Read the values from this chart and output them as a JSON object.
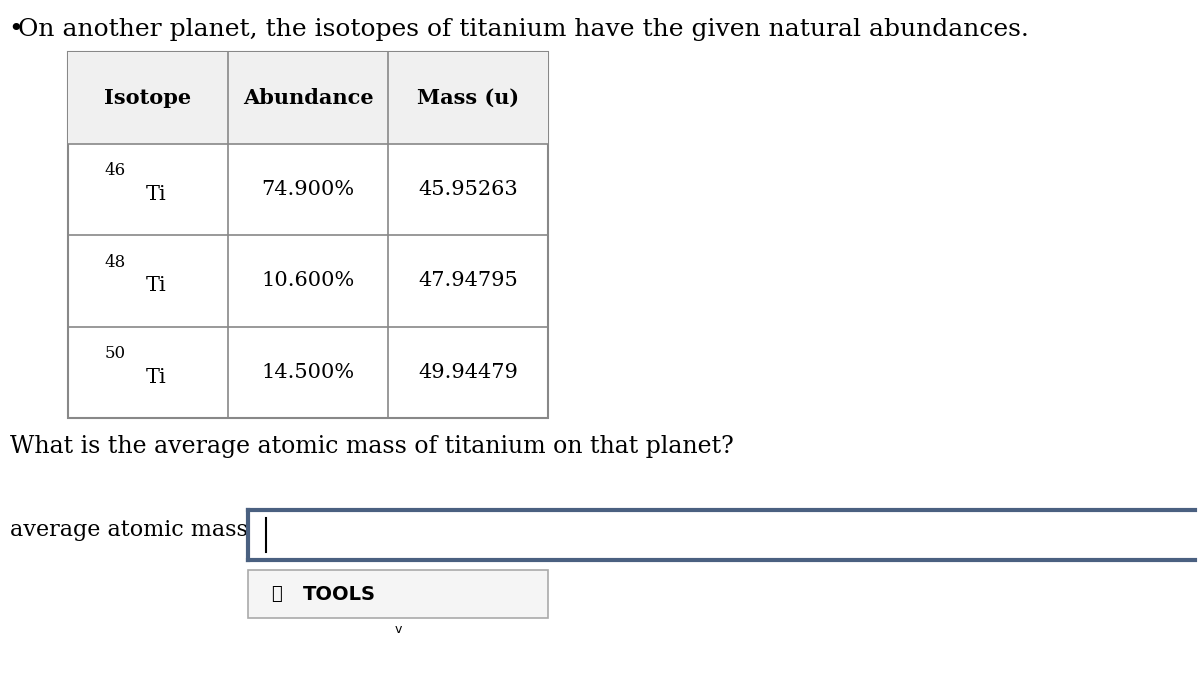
{
  "title": "On another planet, the isotopes of titanium have the given natural abundances.",
  "question": "What is the average atomic mass of titanium on that planet?",
  "answer_label": "average atomic mass:",
  "table_headers": [
    "Isotope",
    "Abundance",
    "Mass (u)"
  ],
  "isotopes": [
    {
      "label_super": "46",
      "label_main": "Ti",
      "abundance": "74.900%",
      "mass": "45.95263"
    },
    {
      "label_super": "48",
      "label_main": "Ti",
      "abundance": "10.600%",
      "mass": "47.94795"
    },
    {
      "label_super": "50",
      "label_main": "Ti",
      "abundance": "14.500%",
      "mass": "49.94479"
    }
  ],
  "tools_label": "TOOLS",
  "bg_color": "#ffffff",
  "text_color": "#000000",
  "table_border_color": "#888888",
  "header_bg_color": "#f0f0f0",
  "input_box_border_color": "#5a6f8a",
  "tools_bg_color": "#f5f5f5",
  "font_size_title": 18,
  "font_size_table_header": 15,
  "font_size_table_data": 15,
  "font_size_question": 17,
  "font_size_answer_label": 16,
  "font_size_tools": 14
}
